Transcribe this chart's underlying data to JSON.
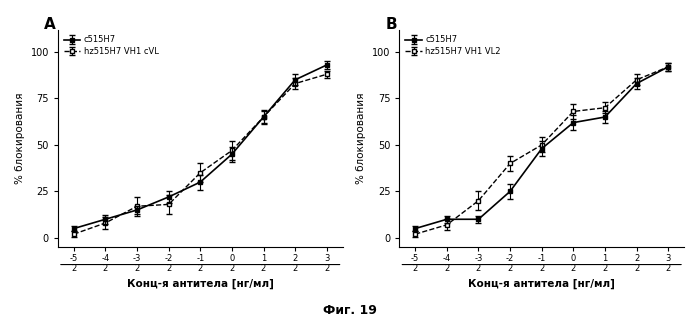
{
  "panel_A": {
    "title": "А",
    "series1_label": "c515H7",
    "series2_label": "hz515H7 VH1 cVL",
    "x": [
      0.78,
      1.56,
      3.13,
      6.25,
      12.5,
      25,
      50,
      100,
      200
    ],
    "s1_y": [
      5,
      10,
      15,
      22,
      30,
      45,
      65,
      85,
      93
    ],
    "s1_err": [
      1.5,
      2.5,
      2,
      3,
      4,
      4,
      3,
      3,
      2
    ],
    "s2_y": [
      2,
      8,
      17,
      18,
      35,
      47,
      65,
      83,
      88
    ],
    "s2_err": [
      1.5,
      3,
      5,
      5,
      5,
      5,
      4,
      3,
      2
    ]
  },
  "panel_B": {
    "title": "В",
    "series1_label": "c515H7",
    "series2_label": "hz515H7 VH1 VL2",
    "x": [
      0.78,
      1.56,
      3.13,
      6.25,
      12.5,
      25,
      50,
      100,
      200
    ],
    "s1_y": [
      5,
      10,
      10,
      25,
      48,
      62,
      65,
      83,
      92
    ],
    "s1_err": [
      1.5,
      2,
      2,
      4,
      4,
      4,
      3,
      3,
      2
    ],
    "s2_y": [
      2,
      7,
      20,
      40,
      50,
      68,
      70,
      85,
      92
    ],
    "s2_err": [
      1.5,
      3,
      5,
      4,
      4,
      4,
      3,
      3,
      2
    ]
  },
  "ylabel": "% блокирования",
  "xlabel": "Конц-я антитела [нг/мл]",
  "ylim": [
    -5,
    112
  ],
  "yticks": [
    0,
    25,
    50,
    75,
    100
  ],
  "caption": "Фиг. 19",
  "bg_color": "#ffffff",
  "s1_color": "#000000",
  "s2_color": "#000000",
  "tick_labels": [
    "-5\n2",
    "-4\n2",
    "-3\n2",
    "-2\n2",
    "-1\n2",
    "0\n2",
    "1\n2",
    "2\n2",
    "3\n2"
  ]
}
